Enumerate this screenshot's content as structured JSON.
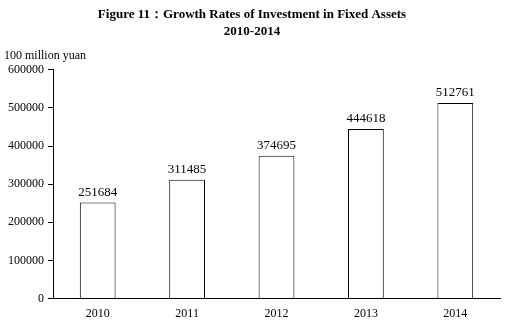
{
  "chart_data": {
    "type": "bar",
    "title": [
      "Figure 11：Growth Rates of Investment in Fixed Assets",
      "2010-2014"
    ],
    "ylabel": "100 million yuan",
    "categories": [
      "2010",
      "2011",
      "2012",
      "2013",
      "2014"
    ],
    "values": [
      251684,
      311485,
      374695,
      444618,
      512761
    ],
    "color": "#ffffff",
    "ylim": [
      0,
      600000
    ],
    "yticks": [
      0,
      100000,
      200000,
      300000,
      400000,
      500000,
      600000
    ],
    "grid": false,
    "data_labels": true
  }
}
